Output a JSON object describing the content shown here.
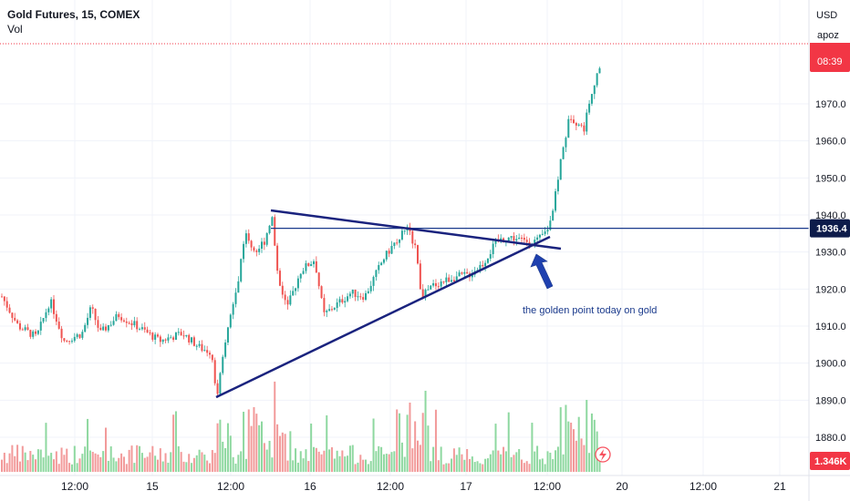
{
  "legend": {
    "symbol": "Gold Futures, 15, COMEX",
    "volume_label": "Vol"
  },
  "axis": {
    "currency": "USD",
    "price_ticks": [
      "1970.0",
      "1960.0",
      "1950.0",
      "1940.0",
      "1930.0",
      "1920.0",
      "1910.0",
      "1900.0",
      "1890.0",
      "1880.0"
    ]
  },
  "time_labels": [
    "12:00",
    "15",
    "12:00",
    "16",
    "12:00",
    "17",
    "12:00",
    "20",
    "12:00",
    "21"
  ],
  "badges": {
    "last_price_top": "apoz",
    "last_price_countdown": "08:39",
    "hline_price": "1936.4",
    "volume": "1.346K"
  },
  "annotation": {
    "text": "the golden point today on gold"
  },
  "colors": {
    "up": "#26a69a",
    "down": "#ef5350",
    "trendline": "#1a237e",
    "hline": "#1a3a8c",
    "badge_red": "#f23645",
    "badge_navy": "#0d1b4a"
  },
  "chart_data": {
    "type": "candlestick",
    "y_axis_range": [
      1876,
      1984
    ],
    "horizontal_line": 1936.4,
    "trendlines": [
      {
        "name": "descending",
        "from": [
          297,
          1941
        ],
        "to": [
          615,
          1931
        ]
      },
      {
        "name": "ascending",
        "from": [
          237,
          1891
        ],
        "to": [
          603,
          1935
        ]
      }
    ],
    "last_price": 1980,
    "volume_last": "1.346K"
  }
}
